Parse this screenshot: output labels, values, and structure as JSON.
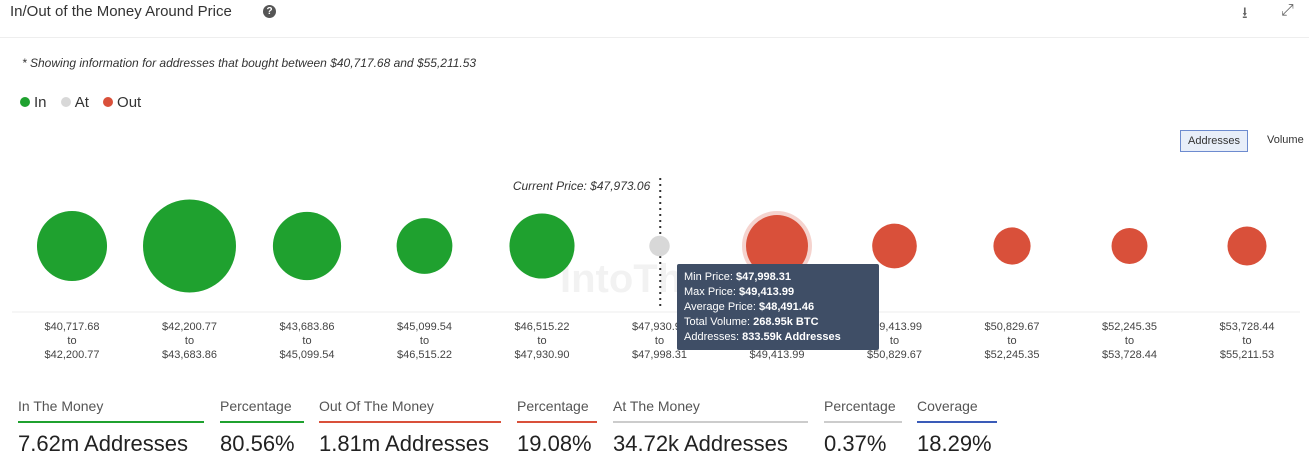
{
  "header": {
    "title": "In/Out of the Money Around Price",
    "help_icon": "question-circle-icon",
    "download_icon": "download-icon",
    "expand_icon": "expand-icon"
  },
  "note": "* Showing information for addresses that bought between $40,717.68 and $55,211.53",
  "legend": [
    {
      "label": "In",
      "color": "#1fa12f"
    },
    {
      "label": "At",
      "color": "#d8d8d8"
    },
    {
      "label": "Out",
      "color": "#d9503a"
    }
  ],
  "toggles": {
    "addresses": "Addresses",
    "volume": "Volume",
    "active": "addresses"
  },
  "chart_data": {
    "type": "scatter",
    "description_type": "bubble",
    "current_price_label": "Current Price: $47,973.06",
    "current_price_position_between": [
      5,
      6
    ],
    "watermark": "IntoThe",
    "bins": [
      {
        "from": "$40,717.68",
        "to": "$42,200.77",
        "status": "in",
        "size": 1.13
      },
      {
        "from": "$42,200.77",
        "to": "$43,683.86",
        "status": "in",
        "size": 1.5
      },
      {
        "from": "$43,683.86",
        "to": "$45,099.54",
        "status": "in",
        "size": 1.1
      },
      {
        "from": "$45,099.54",
        "to": "$46,515.22",
        "status": "in",
        "size": 0.9
      },
      {
        "from": "$46,515.22",
        "to": "$47,930.90",
        "status": "in",
        "size": 1.05
      },
      {
        "from": "$47,930.90",
        "to": "$47,998.31",
        "status": "at",
        "size": 0.33
      },
      {
        "from": "$47,998.31",
        "to": "$49,413.99",
        "status": "out",
        "size": 1.0,
        "highlighted": true
      },
      {
        "from": "$49,413.99",
        "to": "$50,829.67",
        "status": "out",
        "size": 0.72
      },
      {
        "from": "$50,829.67",
        "to": "$52,245.35",
        "status": "out",
        "size": 0.6
      },
      {
        "from": "$52,245.35",
        "to": "$53,728.44",
        "status": "out",
        "size": 0.58
      },
      {
        "from": "$53,728.44",
        "to": "$55,211.53",
        "status": "out",
        "size": 0.63
      }
    ],
    "tooltip": {
      "min_label": "Min Price:",
      "min_value": "$47,998.31",
      "max_label": "Max Price:",
      "max_value": "$49,413.99",
      "avg_label": "Average Price:",
      "avg_value": "$48,491.46",
      "vol_label": "Total Volume:",
      "vol_value": "268.95k BTC",
      "addr_label": "Addresses:",
      "addr_value": "833.59k Addresses"
    }
  },
  "summary": [
    {
      "label": "In The Money",
      "value": "7.62m Addresses",
      "color": "#1fa12f"
    },
    {
      "label": "Percentage",
      "value": "80.56%",
      "color": "#1fa12f"
    },
    {
      "label": "Out Of The Money",
      "value": "1.81m Addresses",
      "color": "#d9503a"
    },
    {
      "label": "Percentage",
      "value": "19.08%",
      "color": "#d9503a"
    },
    {
      "label": "At The Money",
      "value": "34.72k Addresses",
      "color": "#cccccc"
    },
    {
      "label": "Percentage",
      "value": "0.37%",
      "color": "#cccccc"
    },
    {
      "label": "Coverage",
      "value": "18.29%",
      "color": "#3a5bb8"
    }
  ]
}
